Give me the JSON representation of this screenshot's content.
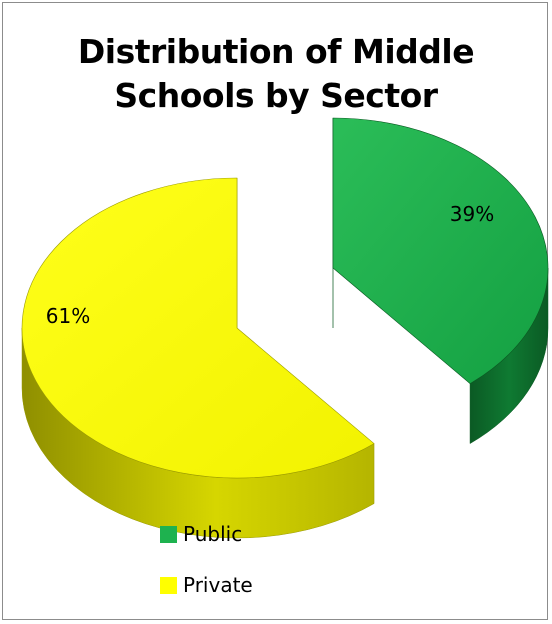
{
  "chart_data": {
    "type": "pie",
    "title_lines": [
      "Distribution of Middle",
      "Schools by Sector"
    ],
    "slices": [
      {
        "name": "Public",
        "value": 39,
        "label": "39%"
      },
      {
        "name": "Private",
        "value": 61,
        "label": "61%"
      }
    ],
    "legend_position": "bottom",
    "three_d": true,
    "exploded": true
  },
  "colors": {
    "public_top": "#1eb24f",
    "public_side": "#0d6b2c",
    "private_top": "#ffff00",
    "private_side": "#a8a800"
  }
}
